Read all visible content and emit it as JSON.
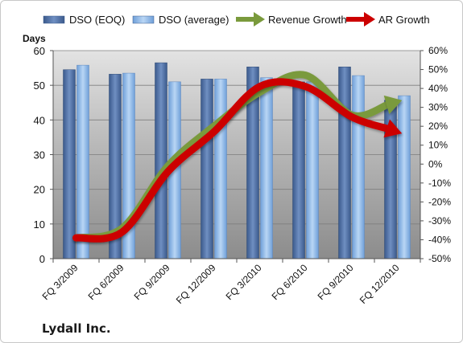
{
  "company": "Lydall Inc.",
  "chart_data": {
    "type": "bar",
    "ylabel_left": "Days",
    "categories": [
      "FQ 3/2009",
      "FQ 6/2009",
      "FQ 9/2009",
      "FQ 12/2009",
      "FQ 3/2010",
      "FQ 6/2010",
      "FQ 9/2010",
      "FQ 12/2010"
    ],
    "left_axis": {
      "min": 0,
      "max": 60,
      "ticks": [
        0,
        10,
        20,
        30,
        40,
        50,
        60
      ]
    },
    "right_axis": {
      "min": -50,
      "max": 60,
      "ticks": [
        "-50%",
        "-40%",
        "-30%",
        "-20%",
        "-10%",
        "0%",
        "10%",
        "20%",
        "30%",
        "40%",
        "50%",
        "60%"
      ]
    },
    "series": [
      {
        "name": "DSO (EOQ)",
        "type": "bar",
        "axis": "left",
        "color": "#4f6fa3",
        "values": [
          54.5,
          53.2,
          56.5,
          51.8,
          55.3,
          51.0,
          55.3,
          45.7
        ]
      },
      {
        "name": "DSO (average)",
        "type": "bar",
        "axis": "left",
        "color": "#8ab4e6",
        "values": [
          55.8,
          53.5,
          51.0,
          51.8,
          52.2,
          51.0,
          52.8,
          47.0
        ]
      },
      {
        "name": "Revenue Growth",
        "type": "line",
        "axis": "right",
        "unit": "%",
        "color": "#7a9a3c",
        "values": [
          -39,
          -34,
          -1,
          20,
          38,
          47,
          26,
          33
        ]
      },
      {
        "name": "AR Growth",
        "type": "line",
        "axis": "right",
        "unit": "%",
        "color": "#cc0000",
        "values": [
          -39,
          -36,
          -4,
          17,
          41,
          41,
          25,
          17
        ]
      }
    ],
    "legend": "top",
    "grid": true
  }
}
